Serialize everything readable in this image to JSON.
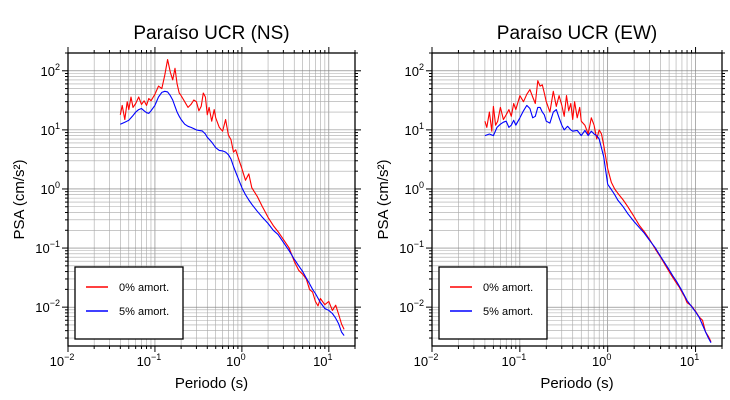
{
  "chart_data": [
    {
      "type": "line",
      "title": "Paraíso UCR (NS)",
      "xlabel": "Periodo (s)",
      "ylabel": "PSA (cm/s²)",
      "xscale": "log",
      "yscale": "log",
      "xlim": [
        0.01,
        20
      ],
      "ylim": [
        0.0022,
        200
      ],
      "xticks": [
        {
          "base": "10",
          "exp": "−2"
        },
        {
          "base": "10",
          "exp": "−1"
        },
        {
          "base": "10",
          "exp": "0"
        },
        {
          "base": "10",
          "exp": "1"
        }
      ],
      "yticks": [
        {
          "base": "10",
          "exp": "−2"
        },
        {
          "base": "10",
          "exp": "−1"
        },
        {
          "base": "10",
          "exp": "0"
        },
        {
          "base": "10",
          "exp": "1"
        },
        {
          "base": "10",
          "exp": "2"
        }
      ],
      "grid": true,
      "legend_position": "bottom-left",
      "series": [
        {
          "name": "0% amort.",
          "color": "#ff0000",
          "x": [
            0.04,
            0.042,
            0.045,
            0.048,
            0.05,
            0.053,
            0.056,
            0.06,
            0.065,
            0.07,
            0.075,
            0.08,
            0.085,
            0.09,
            0.1,
            0.11,
            0.12,
            0.13,
            0.14,
            0.15,
            0.16,
            0.17,
            0.18,
            0.19,
            0.2,
            0.22,
            0.24,
            0.26,
            0.28,
            0.3,
            0.32,
            0.34,
            0.36,
            0.38,
            0.4,
            0.42,
            0.45,
            0.48,
            0.5,
            0.55,
            0.6,
            0.65,
            0.7,
            0.75,
            0.8,
            0.85,
            0.9,
            1.0,
            1.1,
            1.2,
            1.3,
            1.5,
            1.7,
            2.0,
            2.3,
            2.6,
            3.0,
            3.5,
            4.0,
            4.5,
            5.0,
            5.5,
            6.0,
            6.5,
            7.0,
            7.5,
            8.0,
            9.0,
            10.0,
            11.0,
            12.0,
            13.0,
            14.0,
            15.0
          ],
          "y": [
            18,
            26,
            15,
            30,
            22,
            36,
            24,
            28,
            36,
            27,
            31,
            26,
            34,
            31,
            40,
            55,
            50,
            85,
            155,
            95,
            70,
            110,
            60,
            42,
            38,
            30,
            24,
            27,
            32,
            30,
            21,
            25,
            42,
            36,
            18,
            24,
            14,
            22,
            16,
            11,
            9.5,
            15,
            8.2,
            6.8,
            4.2,
            4.6,
            3.5,
            2.2,
            1.4,
            1.8,
            1.05,
            0.75,
            0.52,
            0.33,
            0.24,
            0.19,
            0.14,
            0.1,
            0.06,
            0.042,
            0.036,
            0.03,
            0.02,
            0.018,
            0.0125,
            0.0105,
            0.014,
            0.011,
            0.0125,
            0.0088,
            0.0108,
            0.0075,
            0.0052,
            0.0042
          ]
        },
        {
          "name": "5% amort.",
          "color": "#0000ff",
          "x": [
            0.04,
            0.045,
            0.05,
            0.055,
            0.06,
            0.065,
            0.07,
            0.075,
            0.08,
            0.085,
            0.09,
            0.1,
            0.11,
            0.12,
            0.13,
            0.14,
            0.15,
            0.16,
            0.17,
            0.18,
            0.19,
            0.2,
            0.22,
            0.24,
            0.26,
            0.28,
            0.3,
            0.32,
            0.35,
            0.38,
            0.4,
            0.45,
            0.5,
            0.55,
            0.6,
            0.65,
            0.7,
            0.75,
            0.8,
            0.9,
            1.0,
            1.1,
            1.2,
            1.3,
            1.5,
            1.7,
            2.0,
            2.3,
            2.6,
            3.0,
            3.5,
            4.0,
            4.5,
            5.0,
            5.5,
            6.0,
            6.5,
            7.0,
            8.0,
            9.0,
            10.0,
            11.0,
            12.0,
            13.0,
            14.0,
            15.0
          ],
          "y": [
            12.5,
            13.5,
            14.5,
            17,
            20,
            22,
            23,
            21,
            19.5,
            19,
            21,
            26,
            36,
            43,
            45,
            44,
            38,
            32,
            25,
            20,
            17,
            15,
            12.5,
            11.5,
            11,
            10.5,
            10,
            9.8,
            9.6,
            8.5,
            7.5,
            6.2,
            5,
            4.5,
            4.4,
            4.2,
            3.8,
            3.2,
            2.4,
            1.55,
            1.05,
            0.8,
            0.65,
            0.55,
            0.42,
            0.34,
            0.26,
            0.2,
            0.17,
            0.125,
            0.09,
            0.065,
            0.05,
            0.04,
            0.031,
            0.025,
            0.02,
            0.017,
            0.012,
            0.0095,
            0.0088,
            0.0078,
            0.0065,
            0.0052,
            0.0038,
            0.0033
          ]
        }
      ]
    },
    {
      "type": "line",
      "title": "Paraíso UCR (EW)",
      "xlabel": "Periodo (s)",
      "ylabel": "PSA (cm/s²)",
      "xscale": "log",
      "yscale": "log",
      "xlim": [
        0.01,
        20
      ],
      "ylim": [
        0.0022,
        200
      ],
      "xticks": [
        {
          "base": "10",
          "exp": "−2"
        },
        {
          "base": "10",
          "exp": "−1"
        },
        {
          "base": "10",
          "exp": "0"
        },
        {
          "base": "10",
          "exp": "1"
        }
      ],
      "yticks": [
        {
          "base": "10",
          "exp": "−2"
        },
        {
          "base": "10",
          "exp": "−1"
        },
        {
          "base": "10",
          "exp": "0"
        },
        {
          "base": "10",
          "exp": "1"
        },
        {
          "base": "10",
          "exp": "2"
        }
      ],
      "grid": true,
      "legend_position": "bottom-left",
      "series": [
        {
          "name": "0% amort.",
          "color": "#ff0000",
          "x": [
            0.04,
            0.042,
            0.045,
            0.048,
            0.05,
            0.053,
            0.056,
            0.06,
            0.065,
            0.07,
            0.075,
            0.08,
            0.085,
            0.09,
            0.1,
            0.11,
            0.12,
            0.13,
            0.14,
            0.15,
            0.16,
            0.17,
            0.18,
            0.19,
            0.2,
            0.22,
            0.24,
            0.26,
            0.28,
            0.3,
            0.32,
            0.34,
            0.36,
            0.38,
            0.4,
            0.42,
            0.45,
            0.48,
            0.5,
            0.55,
            0.6,
            0.65,
            0.7,
            0.75,
            0.8,
            0.85,
            0.9,
            1.0,
            1.1,
            1.2,
            1.3,
            1.5,
            1.7,
            2.0,
            2.3,
            2.6,
            3.0,
            3.5,
            4.0,
            4.5,
            5.0,
            5.5,
            6.0,
            6.5,
            7.0,
            7.5,
            8.0,
            9.0,
            10.0,
            11.0,
            12.0,
            13.0,
            14.0,
            15.0
          ],
          "y": [
            14,
            11,
            20,
            9.5,
            25,
            12,
            14,
            24,
            15,
            18,
            22,
            17,
            28,
            22,
            38,
            30,
            40,
            48,
            36,
            28,
            68,
            55,
            58,
            42,
            30,
            20,
            45,
            25,
            38,
            26,
            17,
            38,
            21,
            28,
            15,
            30,
            16,
            24,
            14,
            12,
            8.5,
            16,
            12,
            7,
            10,
            8.5,
            5.5,
            2.2,
            1.3,
            1.0,
            0.85,
            0.65,
            0.5,
            0.34,
            0.24,
            0.19,
            0.14,
            0.095,
            0.07,
            0.052,
            0.04,
            0.032,
            0.026,
            0.022,
            0.018,
            0.015,
            0.012,
            0.0105,
            0.0085,
            0.0068,
            0.006,
            0.0038,
            0.0032,
            0.0026
          ]
        },
        {
          "name": "5% amort.",
          "color": "#0000ff",
          "x": [
            0.04,
            0.045,
            0.05,
            0.055,
            0.06,
            0.065,
            0.07,
            0.075,
            0.08,
            0.085,
            0.09,
            0.1,
            0.11,
            0.12,
            0.13,
            0.14,
            0.15,
            0.16,
            0.17,
            0.18,
            0.19,
            0.2,
            0.22,
            0.24,
            0.26,
            0.28,
            0.3,
            0.32,
            0.35,
            0.38,
            0.4,
            0.45,
            0.5,
            0.55,
            0.6,
            0.65,
            0.7,
            0.75,
            0.8,
            0.9,
            1.0,
            1.1,
            1.2,
            1.3,
            1.5,
            1.7,
            2.0,
            2.3,
            2.6,
            3.0,
            3.5,
            4.0,
            4.5,
            5.0,
            5.5,
            6.0,
            6.5,
            7.0,
            8.0,
            9.0,
            10.0,
            11.0,
            12.0,
            13.0,
            14.0,
            15.0
          ],
          "y": [
            8,
            8.5,
            8,
            11,
            12.5,
            13.5,
            14,
            11,
            12,
            14.5,
            12,
            16,
            21,
            26,
            23,
            16,
            17,
            24,
            24,
            20,
            18,
            14,
            13,
            20,
            22,
            16,
            12,
            10,
            11.5,
            10,
            9.5,
            9.8,
            8,
            9.8,
            8,
            9.5,
            8.5,
            8,
            7,
            3.5,
            1.2,
            0.98,
            0.8,
            0.65,
            0.5,
            0.38,
            0.28,
            0.22,
            0.18,
            0.135,
            0.1,
            0.072,
            0.055,
            0.043,
            0.034,
            0.028,
            0.023,
            0.019,
            0.013,
            0.0103,
            0.0083,
            0.0067,
            0.005,
            0.0038,
            0.003,
            0.0025
          ]
        }
      ]
    }
  ]
}
